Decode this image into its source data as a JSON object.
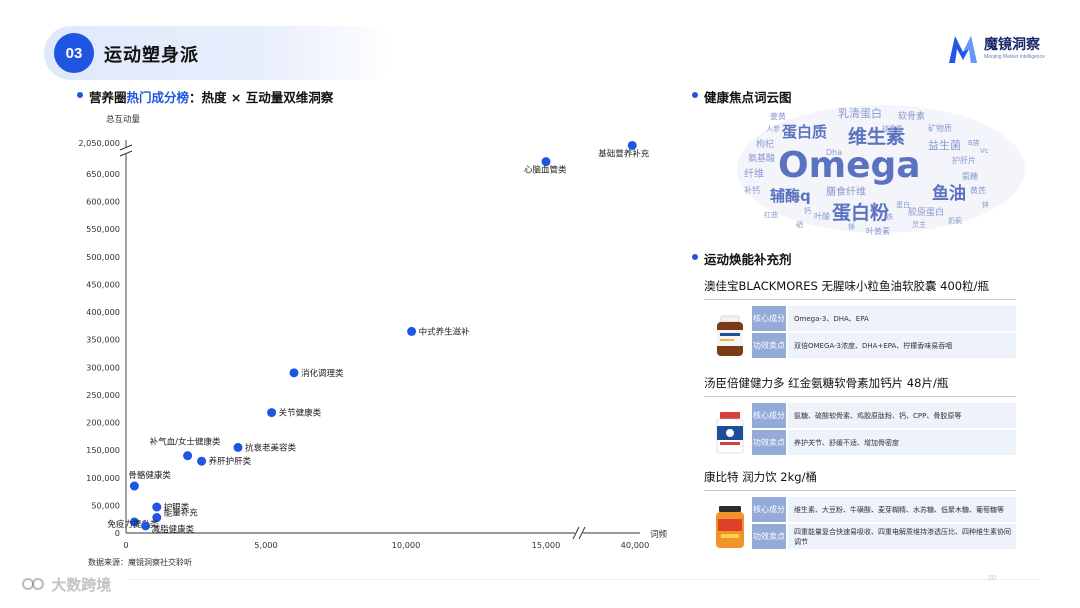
{
  "section": {
    "number": "03",
    "title": "运动塑身派"
  },
  "logo": {
    "name": "魔镜洞察",
    "tagline": "Moojing Market Intelligence",
    "color": "#2457e6"
  },
  "chart_section": {
    "title_prefix": "营养圈",
    "title_highlight": "热门成分榜",
    "title_suffix": "：热度 × 互动量双维洞察"
  },
  "chart_data": {
    "type": "scatter",
    "ylabel": "总互动量",
    "xlabel": "词频",
    "x_ticks": [
      "0",
      "5,000",
      "10,000",
      "15,000",
      "40,000"
    ],
    "y_ticks": [
      "0",
      "50,000",
      "100,000",
      "150,000",
      "200,000",
      "250,000",
      "300,000",
      "350,000",
      "400,000",
      "450,000",
      "500,000",
      "550,000",
      "600,000",
      "650,000",
      "2,050,000"
    ],
    "axis_breaks": {
      "x": [
        15000,
        40000
      ],
      "y": [
        650000,
        2050000
      ]
    },
    "point_color": "#1f55e0",
    "points": [
      {
        "label": "基础营养补充",
        "x": 39000,
        "y": 2010000
      },
      {
        "label": "心脑血管类",
        "x": 15000,
        "y": 680000
      },
      {
        "label": "中式养生滋补",
        "x": 10200,
        "y": 365000
      },
      {
        "label": "消化调理类",
        "x": 6000,
        "y": 290000
      },
      {
        "label": "关节健康类",
        "x": 5200,
        "y": 218000
      },
      {
        "label": "抗衰老美容类",
        "x": 4000,
        "y": 155000
      },
      {
        "label": "补气血/女士健康类",
        "x": 2200,
        "y": 140000
      },
      {
        "label": "养肝护肝类",
        "x": 2700,
        "y": 130000
      },
      {
        "label": "骨骼健康类",
        "x": 300,
        "y": 85000
      },
      {
        "label": "护眼类",
        "x": 1100,
        "y": 47000
      },
      {
        "label": "能量补充",
        "x": 1100,
        "y": 28000
      },
      {
        "label": "免疫力提升类",
        "x": 300,
        "y": 20000
      },
      {
        "label": "减脂健康类",
        "x": 700,
        "y": 13000
      }
    ],
    "source": "数据来源：魔镜洞察社交聆听"
  },
  "wordcloud": {
    "title": "健康焦点词云图",
    "words": [
      {
        "text": "Omega",
        "color": "#5b72c0"
      },
      {
        "text": "维生素",
        "color": "#5b72c0"
      },
      {
        "text": "蛋白粉",
        "color": "#5b72c0"
      },
      {
        "text": "蛋白质",
        "color": "#5b72c0"
      },
      {
        "text": "辅酶q",
        "color": "#5b72c0"
      },
      {
        "text": "鱼油",
        "color": "#5b72c0"
      },
      {
        "text": "乳清蛋白",
        "color": "#8a9ad0"
      },
      {
        "text": "益生菌",
        "color": "#8a9ad0"
      },
      {
        "text": "膳食纤维",
        "color": "#8a9ad0"
      },
      {
        "text": "胶原蛋白",
        "color": "#8a9ad0"
      },
      {
        "text": "软骨素",
        "color": "#8a9ad0"
      },
      {
        "text": "矿物质",
        "color": "#8a9ad0"
      },
      {
        "text": "护肝片",
        "color": "#8a9ad0"
      },
      {
        "text": "氨糖",
        "color": "#8a9ad0"
      },
      {
        "text": "纤维",
        "color": "#8a9ad0"
      },
      {
        "text": "枸杞",
        "color": "#8a9ad0"
      },
      {
        "text": "氨基酸",
        "color": "#8a9ad0"
      },
      {
        "text": "补钙",
        "color": "#8a9ad0"
      },
      {
        "text": "叶酸",
        "color": "#8a9ad0"
      },
      {
        "text": "叶黄素",
        "color": "#8a9ad0"
      },
      {
        "text": "黄芪",
        "color": "#8a9ad0"
      },
      {
        "text": "灵芝",
        "color": "#8a9ad0"
      },
      {
        "text": "姜黄",
        "color": "#8a9ad0"
      },
      {
        "text": "人参",
        "color": "#8a9ad0"
      },
      {
        "text": "Dha",
        "color": "#8a9ad0"
      },
      {
        "text": "红曲",
        "color": "#8a9ad0"
      },
      {
        "text": "B族",
        "color": "#8a9ad0"
      },
      {
        "text": "蛋白",
        "color": "#8a9ad0"
      },
      {
        "text": "钙",
        "color": "#8a9ad0"
      },
      {
        "text": "铁",
        "color": "#8a9ad0"
      },
      {
        "text": "锌",
        "color": "#8a9ad0"
      },
      {
        "text": "Vc",
        "color": "#8a9ad0"
      },
      {
        "text": "硒",
        "color": "#8a9ad0"
      },
      {
        "text": "镁",
        "color": "#8a9ad0"
      },
      {
        "text": "奶蓟",
        "color": "#8a9ad0"
      },
      {
        "text": "褪黑素",
        "color": "#8a9ad0"
      }
    ]
  },
  "products_section": {
    "title": "运动焕能补充剂",
    "tag_core": "核心成分",
    "tag_benefit": "功效卖点",
    "items": [
      {
        "name": "澳佳宝BLACKMORES 无腥味小粒鱼油软胶囊 400粒/瓶",
        "core": "Omega-3、DHA、EPA",
        "benefit": "双倍OMEGA-3浓度、DHA+EPA、柠檬香味易吞咽",
        "color": "#e8b64a"
      },
      {
        "name": "汤臣倍健健力多 红金氨糖软骨素加钙片 48片/瓶",
        "core": "氨糖、硫酸软骨素、鸡胶原肽粉、钙、CPP、骨胶原等",
        "benefit": "养护关节、舒缓不适、增加骨密度",
        "color": "#d84040"
      },
      {
        "name": "康比特 润力饮 2kg/桶",
        "core": "维生素、大豆粉、牛磺酸、麦芽糊精、水苏糖、低聚木糖、葡萄糖等",
        "benefit": "四重能量复合快速易吸收、四重电解质维持渗透压比、四种维生素协同调节",
        "color": "#f0932a"
      }
    ]
  },
  "page_number": "20",
  "watermark": "大数跨境"
}
